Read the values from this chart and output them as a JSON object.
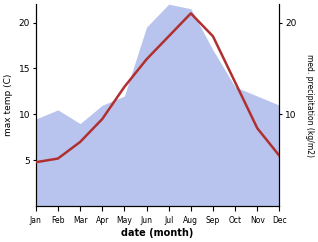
{
  "months": [
    1,
    2,
    3,
    4,
    5,
    6,
    7,
    8,
    9,
    10,
    11,
    12
  ],
  "month_labels": [
    "Jan",
    "Feb",
    "Mar",
    "Apr",
    "May",
    "Jun",
    "Jul",
    "Aug",
    "Sep",
    "Oct",
    "Nov",
    "Dec"
  ],
  "temp": [
    4.8,
    5.2,
    7.0,
    9.5,
    13.0,
    16.0,
    18.5,
    21.0,
    18.5,
    13.5,
    8.5,
    5.5
  ],
  "precip": [
    9.5,
    10.5,
    9.0,
    11.0,
    12.0,
    19.5,
    22.0,
    21.5,
    17.0,
    13.0,
    12.0,
    11.0
  ],
  "temp_color": "#b03030",
  "precip_color": "#b8c4ee",
  "temp_ylim": [
    0,
    22
  ],
  "precip_ylim": [
    0,
    22
  ],
  "temp_yticks": [
    5,
    10,
    15,
    20
  ],
  "precip_yticks": [
    10,
    20
  ],
  "xlabel": "date (month)",
  "ylabel_left": "max temp (C)",
  "ylabel_right": "med. precipitation (kg/m2)",
  "line_width": 1.8,
  "figsize": [
    3.18,
    2.42
  ],
  "dpi": 100
}
